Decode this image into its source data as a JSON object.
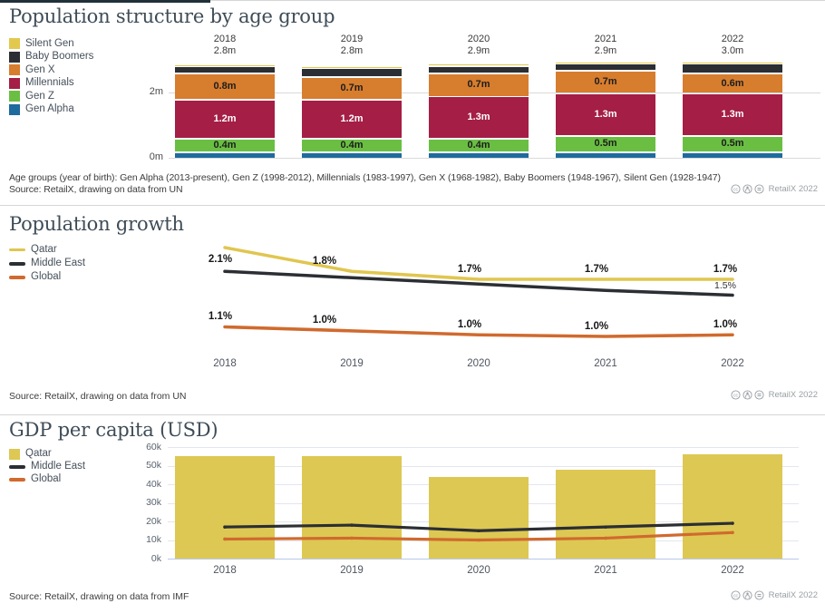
{
  "credit": "RetailX 2022",
  "credit_icons": [
    "cc-icon",
    "attribution-icon",
    "no-derivatives-icon"
  ],
  "chart_data": [
    {
      "id": "population-structure",
      "type": "bar",
      "stacked": true,
      "title": "Population structure by age group",
      "categories": [
        "2018",
        "2019",
        "2020",
        "2021",
        "2022"
      ],
      "totals": [
        "2.8m",
        "2.8m",
        "2.9m",
        "2.9m",
        "3.0m"
      ],
      "ylim": [
        0,
        3
      ],
      "y_ticks": [
        {
          "label": "0m",
          "value": 0
        },
        {
          "label": "2m",
          "value": 2
        }
      ],
      "legend": [
        {
          "label": "Silent Gen",
          "color": "#e3c84e",
          "swatch": "square"
        },
        {
          "label": "Baby Boomers",
          "color": "#2b2e33",
          "swatch": "square"
        },
        {
          "label": "Gen X",
          "color": "#d77d2e",
          "swatch": "square"
        },
        {
          "label": "Millennials",
          "color": "#a41e45",
          "swatch": "square"
        },
        {
          "label": "Gen Z",
          "color": "#6abf43",
          "swatch": "square"
        },
        {
          "label": "Gen Alpha",
          "color": "#1e6b9d",
          "swatch": "square"
        }
      ],
      "series": [
        {
          "name": "Gen Alpha",
          "color": "#1e6b9d",
          "values": [
            0.2,
            0.2,
            0.2,
            0.2,
            0.2
          ],
          "labels": [
            "",
            "",
            "",
            "",
            ""
          ],
          "label_color": "#ffffff"
        },
        {
          "name": "Gen Z",
          "color": "#6abf43",
          "values": [
            0.4,
            0.4,
            0.4,
            0.5,
            0.5
          ],
          "labels": [
            "0.4m",
            "0.4m",
            "0.4m",
            "0.5m",
            "0.5m"
          ],
          "label_color": "#1d1d1d"
        },
        {
          "name": "Millennials",
          "color": "#a41e45",
          "values": [
            1.2,
            1.2,
            1.3,
            1.3,
            1.3
          ],
          "labels": [
            "1.2m",
            "1.2m",
            "1.3m",
            "1.3m",
            "1.3m"
          ],
          "label_color": "#ffffff"
        },
        {
          "name": "Gen X",
          "color": "#d77d2e",
          "values": [
            0.8,
            0.7,
            0.7,
            0.7,
            0.6
          ],
          "labels": [
            "0.8m",
            "0.7m",
            "0.7m",
            "0.7m",
            "0.6m"
          ],
          "label_color": "#1d1d1d"
        },
        {
          "name": "Baby Boomers",
          "color": "#2b2e33",
          "values": [
            0.22,
            0.26,
            0.24,
            0.2,
            0.3
          ],
          "labels": [
            "",
            "",
            "",
            "",
            ""
          ],
          "label_color": "#ffffff"
        },
        {
          "name": "Silent Gen",
          "color": "#e3c84e",
          "values": [
            0.02,
            0.02,
            0.02,
            0.02,
            0.02
          ],
          "labels": [
            "",
            "",
            "",
            "",
            ""
          ],
          "label_color": "#1d1d1d"
        }
      ],
      "footnote": "Age groups (year of birth): Gen Alpha (2013-present), Gen Z (1998-2012), Millennials (1983-1997), Gen X (1968-1982), Baby Boomers (1948-1967), Silent Gen (1928-1947)",
      "source": "Source: RetailX, drawing on data from UN"
    },
    {
      "id": "population-growth",
      "type": "line",
      "title": "Population growth",
      "categories": [
        "2018",
        "2019",
        "2020",
        "2021",
        "2022"
      ],
      "legend": [
        {
          "label": "Qatar",
          "color": "#e0c64f",
          "swatch": "line"
        },
        {
          "label": "Middle East",
          "color": "#2b2e33",
          "swatch": "line"
        },
        {
          "label": "Global",
          "color": "#d06a2e",
          "swatch": "line"
        }
      ],
      "series": [
        {
          "name": "Qatar",
          "color": "#e0c64f",
          "values": [
            2.1,
            1.8,
            1.7,
            1.7,
            1.7
          ],
          "labels": [
            "2.1%",
            "1.8%",
            "1.7%",
            "1.7%",
            "1.7%"
          ]
        },
        {
          "name": "Middle East",
          "color": "#2b2e33",
          "values": [
            1.8,
            1.72,
            1.64,
            1.56,
            1.5
          ],
          "labels": [
            "",
            "",
            "",
            "",
            "1.5%"
          ]
        },
        {
          "name": "Global",
          "color": "#d06a2e",
          "values": [
            1.1,
            1.05,
            1.0,
            0.98,
            1.0
          ],
          "labels": [
            "1.1%",
            "1.0%",
            "1.0%",
            "1.0%",
            "1.0%"
          ]
        }
      ],
      "source": "Source: RetailX, drawing on data from UN"
    },
    {
      "id": "gdp-per-capita",
      "type": "bar+line",
      "title": "GDP per capita (USD)",
      "categories": [
        "2018",
        "2019",
        "2020",
        "2021",
        "2022"
      ],
      "ylim": [
        0,
        60000
      ],
      "y_ticks": [
        {
          "label": "0k",
          "value": 0
        },
        {
          "label": "10k",
          "value": 10000
        },
        {
          "label": "20k",
          "value": 20000
        },
        {
          "label": "30k",
          "value": 30000
        },
        {
          "label": "40k",
          "value": 40000
        },
        {
          "label": "50k",
          "value": 50000
        },
        {
          "label": "60k",
          "value": 60000
        }
      ],
      "legend": [
        {
          "label": "Qatar",
          "color": "#ddc853",
          "swatch": "square"
        },
        {
          "label": "Middle East",
          "color": "#2b2e33",
          "swatch": "line"
        },
        {
          "label": "Global",
          "color": "#d06a2e",
          "swatch": "line"
        }
      ],
      "bar_series": {
        "name": "Qatar",
        "color": "#ddc853",
        "values": [
          55000,
          55000,
          44000,
          48000,
          56000
        ]
      },
      "line_series": [
        {
          "name": "Middle East",
          "color": "#2b2e33",
          "values": [
            17000,
            18000,
            15000,
            17000,
            19000
          ]
        },
        {
          "name": "Global",
          "color": "#d06a2e",
          "values": [
            10500,
            11000,
            10000,
            11000,
            14000
          ]
        }
      ],
      "source": "Source: RetailX, drawing on data from IMF"
    }
  ]
}
